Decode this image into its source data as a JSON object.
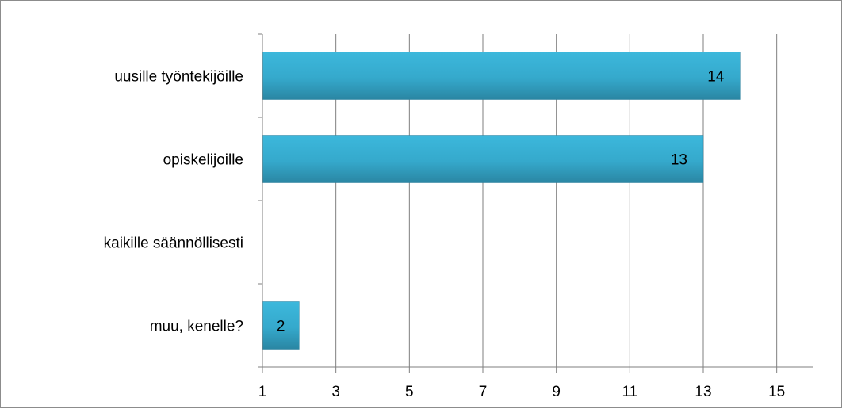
{
  "chart_data": {
    "type": "bar",
    "orientation": "horizontal",
    "categories": [
      "uusille työntekijöille",
      "opiskelijoille",
      "kaikille säännöllisesti",
      "muu, kenelle?"
    ],
    "values": [
      14,
      13,
      1,
      2
    ],
    "data_labels": [
      "14",
      "13",
      "",
      "2"
    ],
    "xlim": [
      1,
      16
    ],
    "x_ticks": [
      1,
      3,
      5,
      7,
      9,
      11,
      13,
      15
    ],
    "x_tick_labels": [
      "1",
      "3",
      "5",
      "7",
      "9",
      "11",
      "13",
      "15"
    ],
    "title": "",
    "xlabel": "",
    "ylabel": "",
    "grid": "vertical",
    "legend": "none",
    "colors": {
      "bar_top": "#3cb8dc",
      "bar_bottom": "#2a86a3",
      "bar_stroke": "#2a7f9c",
      "grid": "#7f7f7f",
      "axis": "#7f7f7f",
      "frame": "#8c8c8c"
    }
  }
}
